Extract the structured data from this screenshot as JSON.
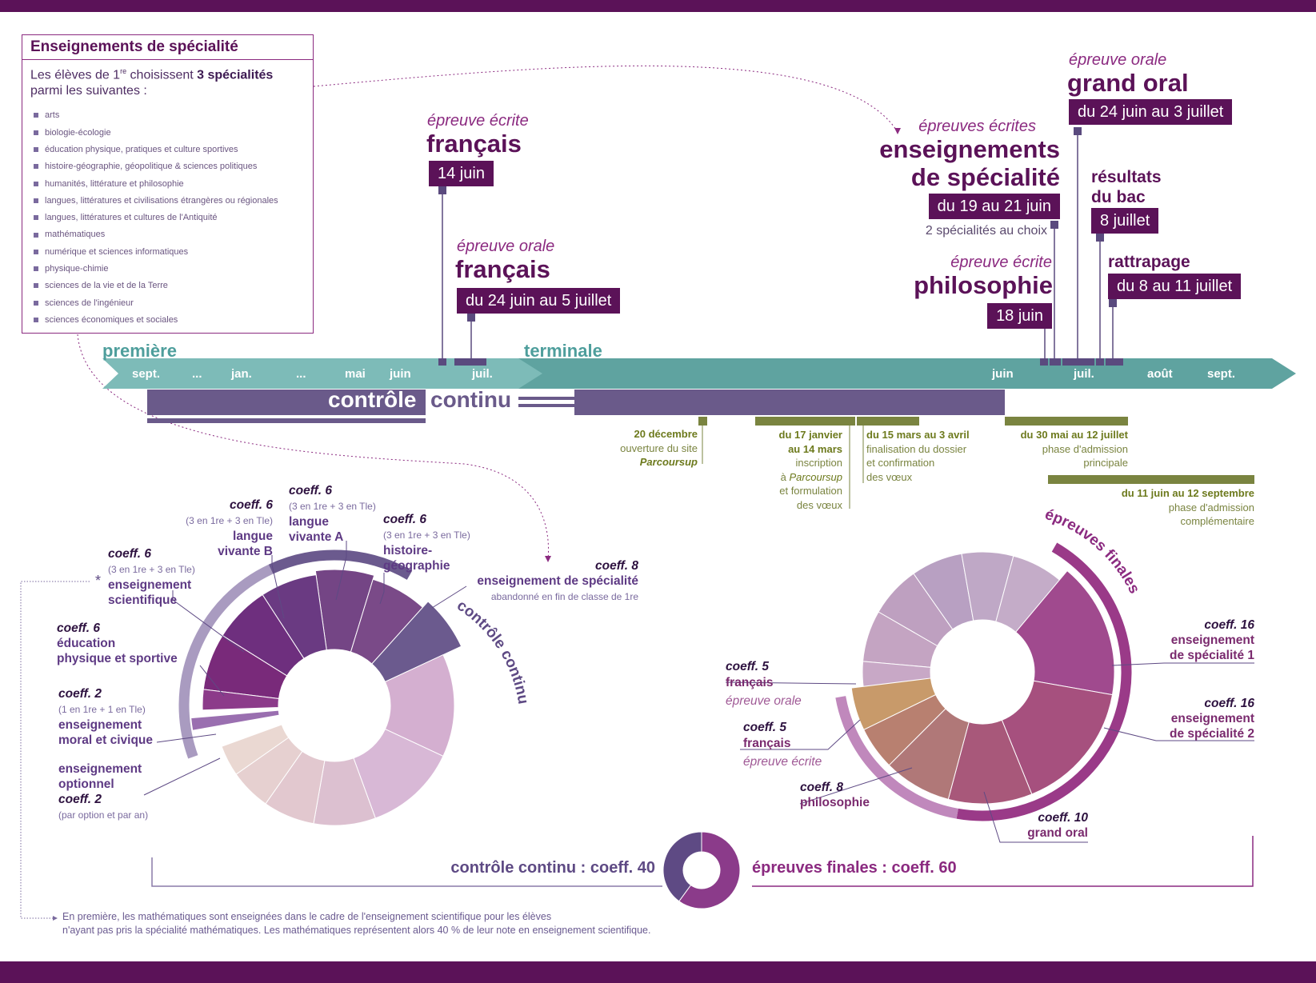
{
  "speciality_box": {
    "title": "Enseignements de spécialité",
    "intro_start": "Les élèves de 1",
    "intro_sup": "re",
    "intro_mid": " choisissent ",
    "intro_bold": "3 spécialités",
    "intro_end": "parmi les suivantes :",
    "items": [
      "arts",
      "biologie-écologie",
      "éducation physique, pratiques et culture sportives",
      "histoire-géographie, géopolitique & sciences politiques",
      "humanités, littérature et philosophie",
      "langues, littératures et civilisations étrangères ou régionales",
      "langues, littératures et cultures de l'Antiquité",
      "mathématiques",
      "numérique et sciences informatiques",
      "physique-chimie",
      "sciences de la vie et de la Terre",
      "sciences de l'ingénieur",
      "sciences économiques et sociales"
    ]
  },
  "events": {
    "francais_ecrit": {
      "sub": "épreuve écrite",
      "title": "français",
      "date": "14 juin"
    },
    "francais_oral": {
      "sub": "épreuve orale",
      "title": "français",
      "date": "du 24 juin au 5 juillet"
    },
    "specialite": {
      "sub": "épreuves écrites",
      "title1": "enseignements",
      "title2": "de spécialité",
      "date": "du 19 au 21 juin",
      "note": "2 spécialités au choix"
    },
    "philosophie": {
      "sub": "épreuve écrite",
      "title": "philosophie",
      "date": "18 juin"
    },
    "grand_oral": {
      "sub": "épreuve orale",
      "title": "grand oral",
      "date": "du 24 juin au 3 juillet"
    },
    "resultats": {
      "title1": "résultats",
      "title2": "du bac",
      "date": "8 juillet"
    },
    "rattrapage": {
      "title": "rattrapage",
      "date": "du 8 au 11 juillet"
    }
  },
  "timeline": {
    "premiere_label": "première",
    "terminale_label": "terminale",
    "premiere_months": [
      "sept.",
      "...",
      "jan.",
      "...",
      "mai",
      "juin",
      "juil."
    ],
    "terminale_months": [
      "juin",
      "juil.",
      "août",
      "sept."
    ],
    "controle_continu_part1": "contrôle",
    "controle_continu_part2": "continu"
  },
  "parcoursup": {
    "p1": {
      "date": "20 décembre",
      "line1": "ouverture du site",
      "line2": "Parcoursup"
    },
    "p2": {
      "date1": "du 17 janvier",
      "date2": "au 14 mars",
      "line1": "inscription",
      "line2a": "à ",
      "line2b": "Parcoursup",
      "line3": "et formulation",
      "line4": "des vœux"
    },
    "p3": {
      "date": "du 15 mars au 3 avril",
      "line1": "finalisation du dossier",
      "line2": "et confirmation",
      "line3": "des vœux"
    },
    "p4": {
      "date": "du 30 mai au 12 juillet",
      "line1": "phase d'admission",
      "line2": "principale"
    },
    "p5": {
      "date": "du 11 juin au 12 septembre",
      "line1": "phase d'admission",
      "line2": "complémentaire"
    }
  },
  "controle_continu_chart": {
    "arc_label": "contrôle continu",
    "labels": {
      "lvb": {
        "coeff": "coeff. 6",
        "detail": "(3 en 1re + 3 en Tle)",
        "name1": "langue",
        "name2": "vivante B"
      },
      "lva": {
        "coeff": "coeff. 6",
        "detail": "(3 en 1re + 3 en Tle)",
        "name1": "langue",
        "name2": "vivante A"
      },
      "hg": {
        "coeff": "coeff. 6",
        "detail": "(3 en 1re + 3 en Tle)",
        "name1": "histoire-",
        "name2": "géographie"
      },
      "sci": {
        "coeff": "coeff. 6",
        "detail": "(3 en 1re + 3 en Tle)",
        "name1": "enseignement",
        "name2": "scientifique"
      },
      "spe": {
        "coeff": "coeff. 8",
        "name": "enseignement de spécialité",
        "detail": "abandonné en fin de classe de 1re"
      },
      "eps": {
        "coeff": "coeff. 6",
        "name1": "éducation",
        "name2": "physique et sportive"
      },
      "emc": {
        "coeff": "coeff. 2",
        "detail": "(1 en 1re + 1 en Tle)",
        "name1": "enseignement",
        "name2": "moral et civique"
      },
      "opt": {
        "name1": "enseignement",
        "name2": "optionnel",
        "coeff": "coeff. 2",
        "detail": "(par option et par an)"
      }
    },
    "asterisk": "*"
  },
  "epreuves_finales_chart": {
    "arc_label": "épreuves finales",
    "labels": {
      "spe1": {
        "coeff": "coeff. 16",
        "name1": "enseignement",
        "name2": "de spécialité 1"
      },
      "spe2": {
        "coeff": "coeff. 16",
        "name1": "enseignement",
        "name2": "de spécialité 2"
      },
      "fr_oral": {
        "coeff": "coeff. 5",
        "name": "français",
        "type": "épreuve orale"
      },
      "fr_ecrit": {
        "coeff": "coeff. 5",
        "name": "français",
        "type": "épreuve écrite"
      },
      "philo": {
        "coeff": "coeff. 8",
        "name": "philosophie"
      },
      "go": {
        "coeff": "coeff. 10",
        "name": "grand oral"
      }
    }
  },
  "summary": {
    "left": "contrôle continu : coeff. 40",
    "right": "épreuves finales : coeff. 60",
    "controle_continu_coeff": 40,
    "epreuves_finales_coeff": 60
  },
  "footnote": {
    "line1": "En première, les mathématiques sont enseignées dans le cadre de l'enseignement scientifique pour les élèves",
    "line2": "n'ayant pas pris la spécialité mathématiques. Les mathématiques représentent alors 40 % de leur note en enseignement scientifique."
  },
  "colors": {
    "band": "#5b1258",
    "teal": "#5fa3a0",
    "cc_bar": "#6a5a8a",
    "olive": "#7a8440",
    "accent": "#8b2a80"
  }
}
